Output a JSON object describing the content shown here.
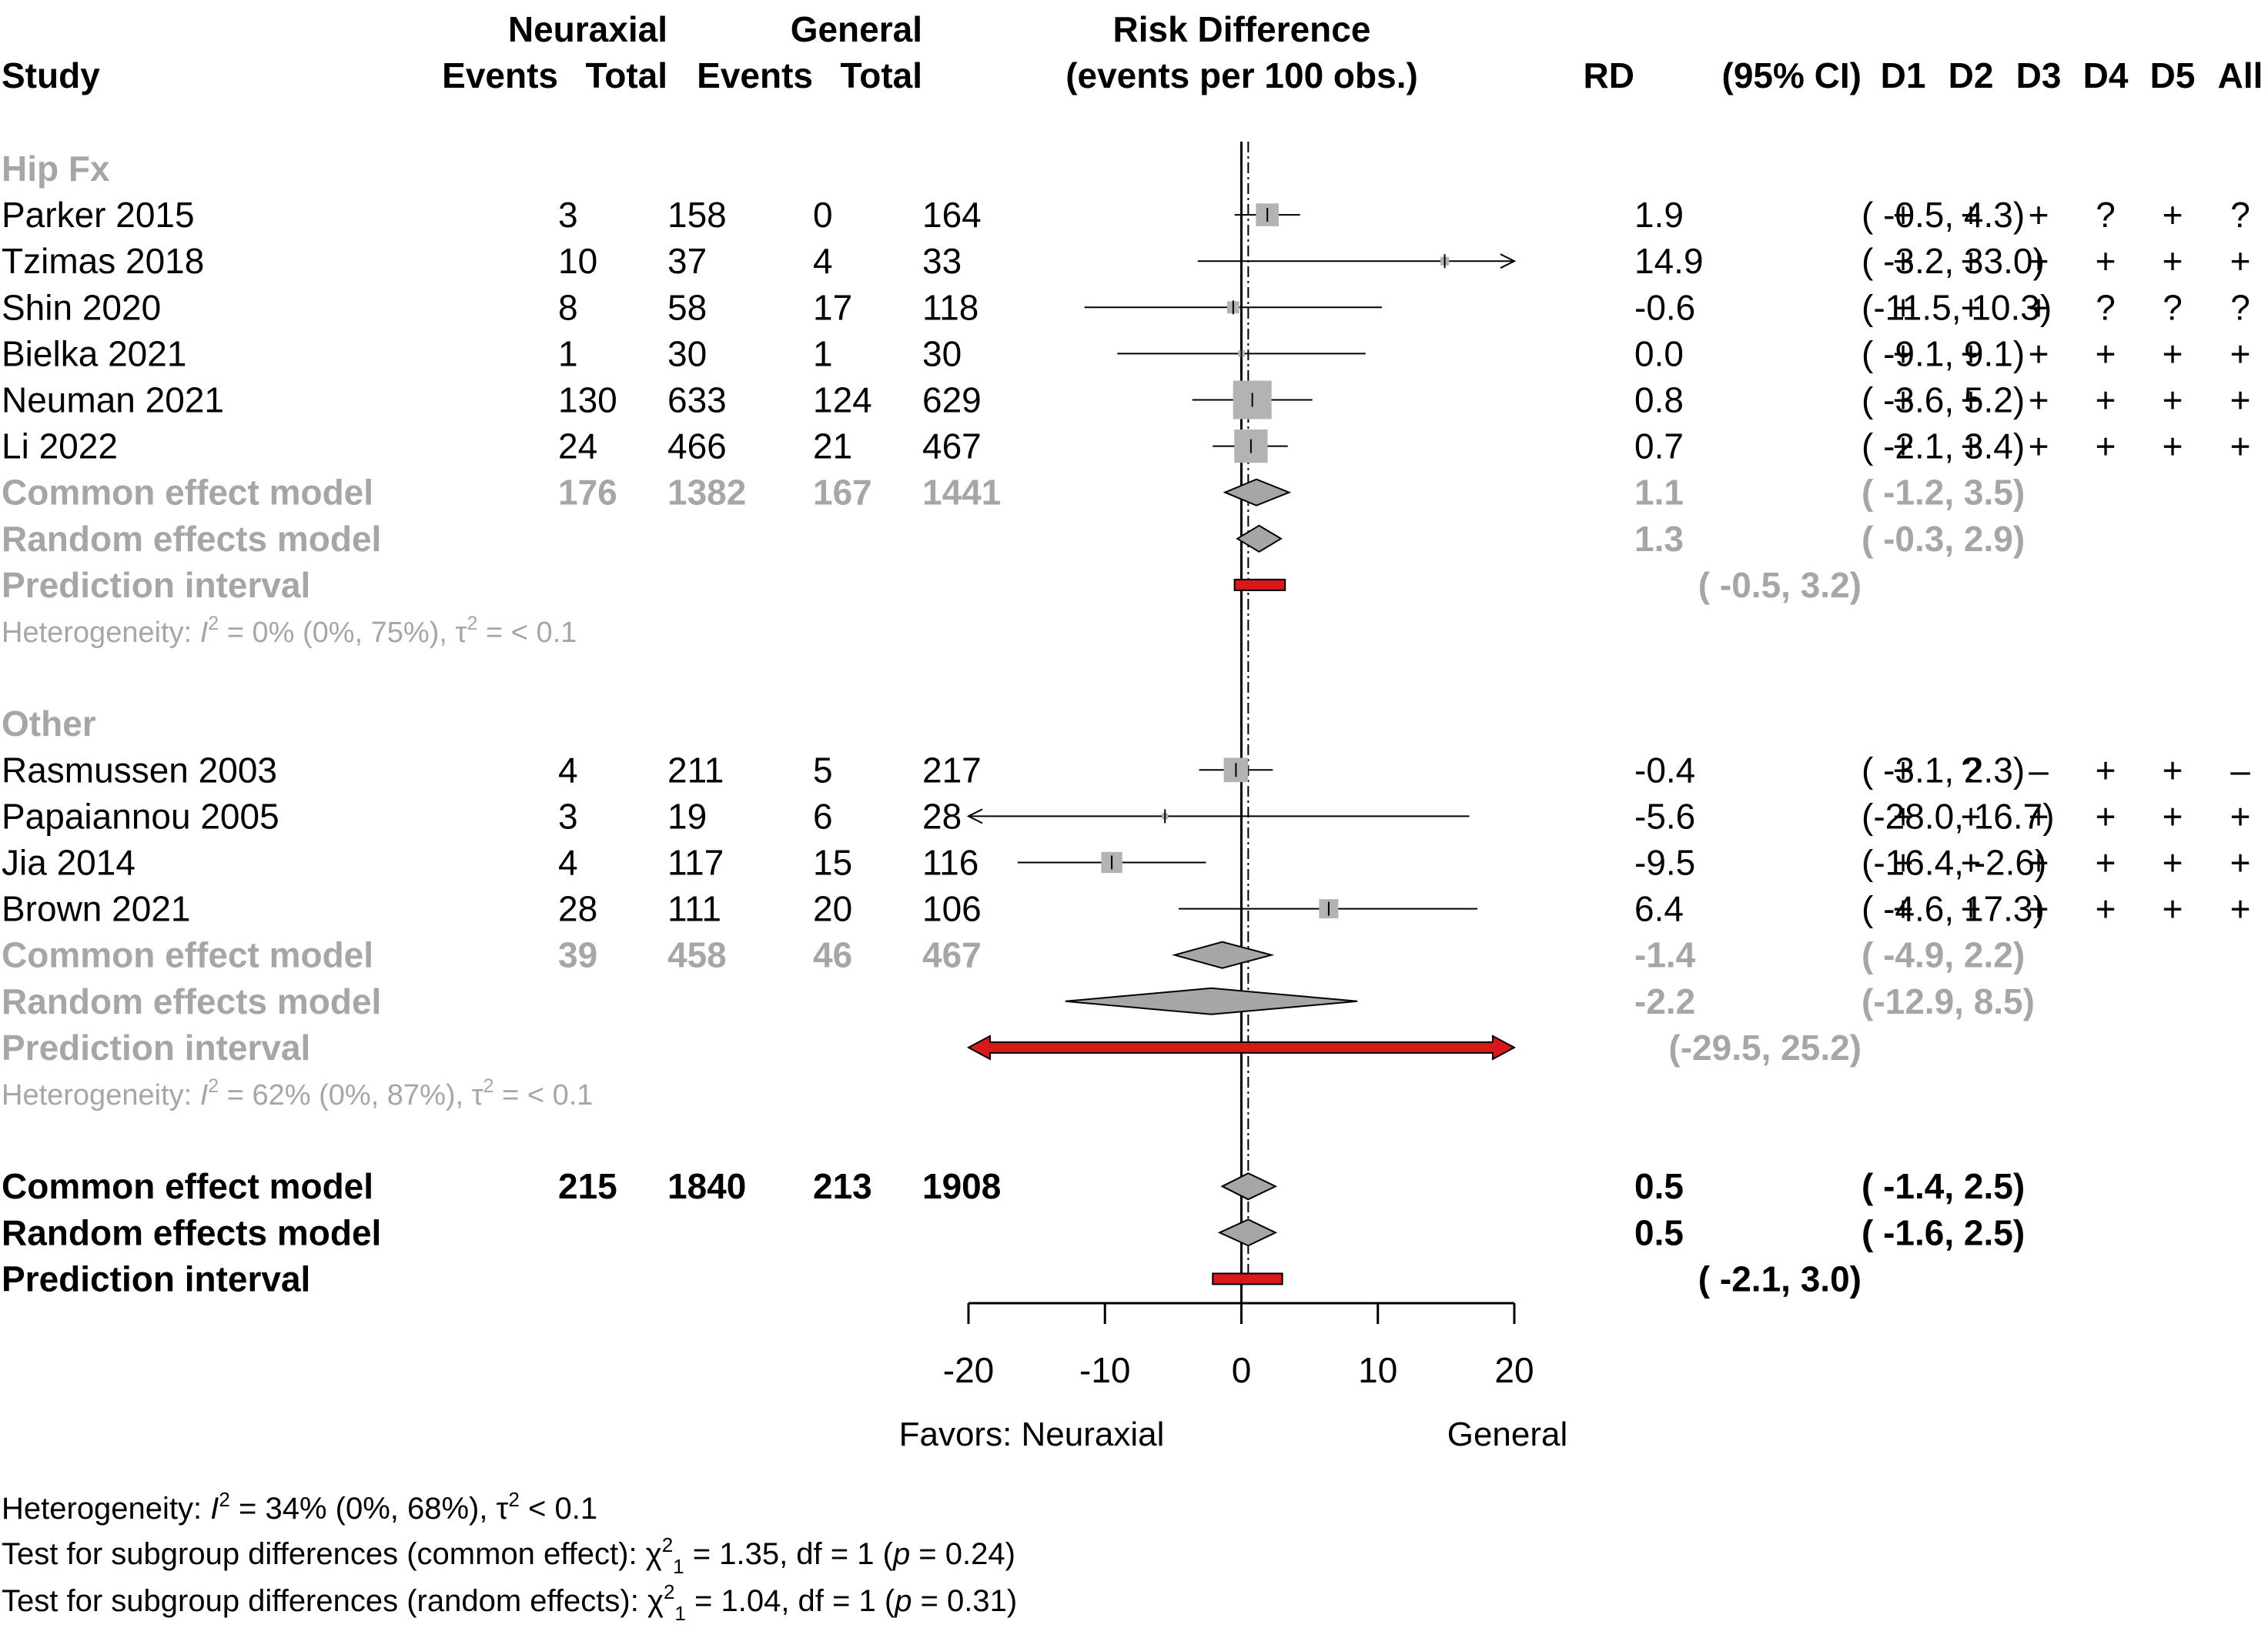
{
  "colors": {
    "text": "#000000",
    "subgroup_text": "#a6a6a6",
    "square_fill": "#b3b3b3",
    "diamond_fill": "#a6a6a6",
    "prediction_fill": "#d7191c",
    "line": "#000000"
  },
  "header": {
    "study": "Study",
    "neuraxial": "Neuraxial",
    "general": "General",
    "events": "Events",
    "total": "Total",
    "risk_diff_line1": "Risk Difference",
    "risk_diff_line2": "(events per 100 obs.)",
    "rd": "RD",
    "ci": "(95% CI)",
    "d1": "D1",
    "d2": "D2",
    "d3": "D3",
    "d4": "D4",
    "d5": "D5",
    "all": "All"
  },
  "axis": {
    "ticks": [
      "-20",
      "-10",
      "0",
      "10",
      "20"
    ],
    "favors_left": "Favors: Neuraxial",
    "favors_right": "General"
  },
  "chart_data": {
    "type": "forest",
    "xlim": [
      -20,
      20
    ],
    "x_ticks": [
      -20,
      -10,
      0,
      10,
      20
    ],
    "reference_line": 0,
    "overall_common_line": 0.5,
    "subgroups": [
      {
        "label": "Hip Fx",
        "studies": [
          {
            "study": "Parker 2015",
            "n_events": "3",
            "n_total": "158",
            "g_events": "0",
            "g_total": "164",
            "rd": 1.9,
            "lower": -0.5,
            "upper": 4.3,
            "weight": 0.35,
            "rd_text": "1.9",
            "ci_text": "( -0.5,  4.3)",
            "rob": [
              "+",
              "+",
              "+",
              "?",
              "+",
              "?"
            ]
          },
          {
            "study": "Tzimas 2018",
            "n_events": "10",
            "n_total": "37",
            "g_events": "4",
            "g_total": "33",
            "rd": 14.9,
            "lower": -3.2,
            "upper": 33.0,
            "weight": 0.05,
            "rd_text": "14.9",
            "ci_text": "( -3.2, 33.0)",
            "rob": [
              "+",
              "+",
              "+",
              "+",
              "+",
              "+"
            ]
          },
          {
            "study": "Shin 2020",
            "n_events": "8",
            "n_total": "58",
            "g_events": "17",
            "g_total": "118",
            "rd": -0.6,
            "lower": -11.5,
            "upper": 10.3,
            "weight": 0.1,
            "rd_text": "-0.6",
            "ci_text": "(-11.5, 10.3)",
            "rob": [
              "+",
              "+",
              "+",
              "?",
              "?",
              "?"
            ]
          },
          {
            "study": "Bielka 2021",
            "n_events": "1",
            "n_total": "30",
            "g_events": "1",
            "g_total": "30",
            "rd": 0.0,
            "lower": -9.1,
            "upper": 9.1,
            "weight": 0.03,
            "rd_text": "0.0",
            "ci_text": "( -9.1,  9.1)",
            "rob": [
              "+",
              "+",
              "+",
              "+",
              "+",
              "+"
            ]
          },
          {
            "study": "Neuman 2021",
            "n_events": "130",
            "n_total": "633",
            "g_events": "124",
            "g_total": "629",
            "rd": 0.8,
            "lower": -3.6,
            "upper": 5.2,
            "weight": 1.0,
            "rd_text": "0.8",
            "ci_text": "( -3.6,  5.2)",
            "rob": [
              "+",
              "+",
              "+",
              "+",
              "+",
              "+"
            ]
          },
          {
            "study": "Li 2022",
            "n_events": "24",
            "n_total": "466",
            "g_events": "21",
            "g_total": "467",
            "rd": 0.7,
            "lower": -2.1,
            "upper": 3.4,
            "weight": 0.75,
            "rd_text": "0.7",
            "ci_text": "( -2.1,  3.4)",
            "rob": [
              "+",
              "+",
              "+",
              "+",
              "+",
              "+"
            ]
          }
        ],
        "common": {
          "label": "Common effect model",
          "n_events": "176",
          "n_total": "1382",
          "g_events": "167",
          "g_total": "1441",
          "rd": 1.1,
          "lower": -1.2,
          "upper": 3.5,
          "rd_text": "1.1",
          "ci_text": "( -1.2,  3.5)"
        },
        "random": {
          "label": "Random effects model",
          "rd": 1.3,
          "lower": -0.3,
          "upper": 2.9,
          "rd_text": "1.3",
          "ci_text": "( -0.3,  2.9)"
        },
        "prediction": {
          "label": "Prediction interval",
          "lower": -0.5,
          "upper": 3.2,
          "ci_text": "( -0.5,  3.2)"
        },
        "heterogeneity": {
          "prefix": "Heterogeneity: ",
          "i2_symbol": "I",
          "i2_rest": " = 0% (0%, 75%), ",
          "tau_symbol": "τ",
          "tau_rest": " = < 0.1"
        }
      },
      {
        "label": "Other",
        "studies": [
          {
            "study": "Rasmussen 2003",
            "n_events": "4",
            "n_total": "211",
            "g_events": "5",
            "g_total": "217",
            "rd": -0.4,
            "lower": -3.1,
            "upper": 2.3,
            "weight": 0.4,
            "rd_text": "-0.4",
            "ci_text": "( -3.1,  2.3)",
            "rob": [
              "+",
              "?",
              "–",
              "+",
              "+",
              "–"
            ]
          },
          {
            "study": "Papaiannou 2005",
            "n_events": "3",
            "n_total": "19",
            "g_events": "6",
            "g_total": "28",
            "rd": -5.6,
            "lower": -28.0,
            "upper": 16.7,
            "weight": 0.02,
            "rd_text": "-5.6",
            "ci_text": "(-28.0, 16.7)",
            "rob": [
              "+",
              "+",
              "+",
              "+",
              "+",
              "+"
            ]
          },
          {
            "study": "Jia 2014",
            "n_events": "4",
            "n_total": "117",
            "g_events": "15",
            "g_total": "116",
            "rd": -9.5,
            "lower": -16.4,
            "upper": -2.6,
            "weight": 0.3,
            "rd_text": "-9.5",
            "ci_text": "(-16.4, -2.6)",
            "rob": [
              "+",
              "+",
              "+",
              "+",
              "+",
              "+"
            ]
          },
          {
            "study": "Brown 2021",
            "n_events": "28",
            "n_total": "111",
            "g_events": "20",
            "g_total": "106",
            "rd": 6.4,
            "lower": -4.6,
            "upper": 17.3,
            "weight": 0.25,
            "rd_text": "6.4",
            "ci_text": "( -4.6, 17.3)",
            "rob": [
              "+",
              "+",
              "+",
              "+",
              "+",
              "+"
            ]
          }
        ],
        "common": {
          "label": "Common effect model",
          "n_events": "39",
          "n_total": "458",
          "g_events": "46",
          "g_total": "467",
          "rd": -1.4,
          "lower": -4.9,
          "upper": 2.2,
          "rd_text": "-1.4",
          "ci_text": "( -4.9,  2.2)"
        },
        "random": {
          "label": "Random effects model",
          "rd": -2.2,
          "lower": -12.9,
          "upper": 8.5,
          "rd_text": "-2.2",
          "ci_text": "(-12.9,  8.5)"
        },
        "prediction": {
          "label": "Prediction interval",
          "lower": -29.5,
          "upper": 25.2,
          "ci_text": "(-29.5, 25.2)"
        },
        "heterogeneity": {
          "prefix": "Heterogeneity: ",
          "i2_symbol": "I",
          "i2_rest": " = 62% (0%, 87%), ",
          "tau_symbol": "τ",
          "tau_rest": " = < 0.1"
        }
      }
    ],
    "overall": {
      "common": {
        "label": "Common effect model",
        "n_events": "215",
        "n_total": "1840",
        "g_events": "213",
        "g_total": "1908",
        "rd": 0.5,
        "lower": -1.4,
        "upper": 2.5,
        "rd_text": "0.5",
        "ci_text": "( -1.4,  2.5)"
      },
      "random": {
        "label": "Random effects model",
        "rd": 0.5,
        "lower": -1.6,
        "upper": 2.5,
        "rd_text": "0.5",
        "ci_text": "( -1.6,  2.5)"
      },
      "prediction": {
        "label": "Prediction interval",
        "lower": -2.1,
        "upper": 3.0,
        "ci_text": "( -2.1,  3.0)"
      }
    },
    "footer": {
      "heterogeneity": {
        "prefix": "Heterogeneity: ",
        "i2_symbol": "I",
        "i2_rest": " = 34% (0%, 68%), ",
        "tau_symbol": "τ",
        "tau_rest": " < 0.1"
      },
      "test_common": {
        "prefix": "Test for subgroup differences (common effect): ",
        "chi": "χ",
        "rest1": " = 1.35, df = 1 (",
        "p": "p",
        "rest2": " = 0.24)"
      },
      "test_random": {
        "prefix": "Test for subgroup differences (random effects): ",
        "chi": "χ",
        "rest1": " = 1.04, df = 1 (",
        "p": "p",
        "rest2": " = 0.31)"
      }
    }
  }
}
